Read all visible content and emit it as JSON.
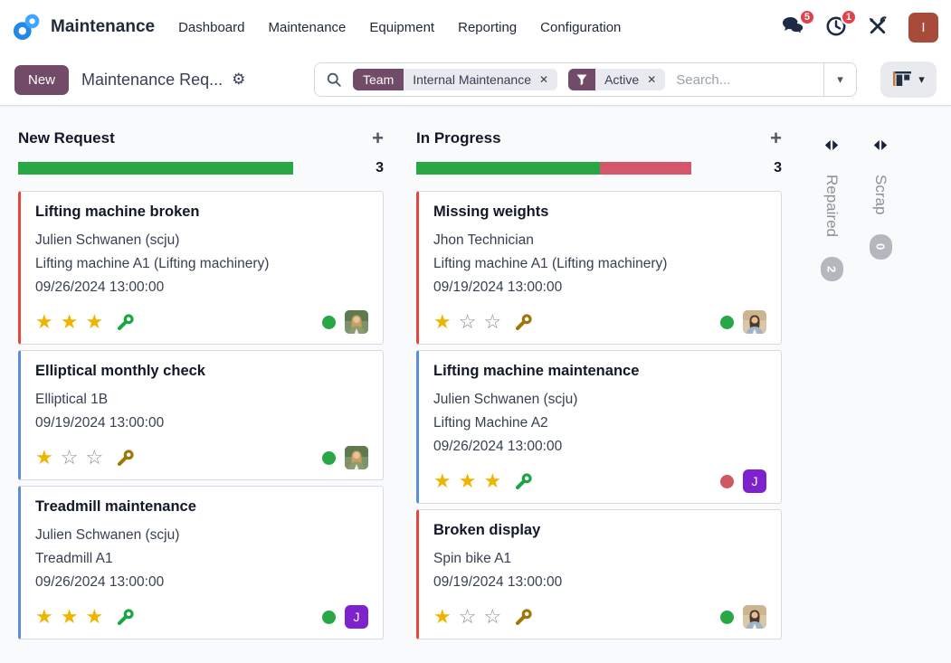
{
  "theme": {
    "purple": "#714B67",
    "page_bg": "#f9fafb",
    "green": "#28a745",
    "progress_red": "#d5566a",
    "accent_red": "#e8453c",
    "accent_blue": "#598fd8",
    "gold": "#f0b400",
    "star_empty": "#8a9099",
    "wrench_green": "#18a742",
    "wrench_olive": "#a07608",
    "dot_green": "#28a745",
    "dot_red": "#d05862",
    "badge_red": "#e0414d",
    "avatar_user_bg": "#a84b3b",
    "avatar_initial_bg": "#7e22ce",
    "folded_badge_bg": "#b4b7bd"
  },
  "icons": {
    "star_filled": "★",
    "star_empty": "☆",
    "plus": "+",
    "gear": "⚙",
    "caret_down": "▾",
    "remove": "✕"
  },
  "navbar": {
    "app_name": "Maintenance",
    "menu": [
      {
        "label": "Dashboard"
      },
      {
        "label": "Maintenance"
      },
      {
        "label": "Equipment"
      },
      {
        "label": "Reporting"
      },
      {
        "label": "Configuration"
      }
    ],
    "messages_badge": "5",
    "activities_badge": "1",
    "user_initial": "I"
  },
  "control_panel": {
    "new_button_label": "New",
    "breadcrumb_title": "Maintenance Req...",
    "search": {
      "placeholder": "Search...",
      "facets": [
        {
          "kind": "field",
          "label": "Team",
          "value": "Internal Maintenance",
          "remove_icon": "✕"
        },
        {
          "kind": "filter",
          "value": "Active",
          "remove_icon": "✕"
        }
      ]
    }
  },
  "board": {
    "columns": [
      {
        "title": "New Request",
        "count": "3",
        "progress": [
          {
            "label": "success",
            "color": "#28a745",
            "pct": 100
          }
        ],
        "cards": [
          {
            "accent": "red",
            "title": "Lifting machine broken",
            "lines": [
              "Julien Schwanen (scju)",
              "Lifting machine A1 (Lifting machinery)",
              "09/26/2024 13:00:00"
            ],
            "stars_filled": 3,
            "stars_total": 3,
            "wrench": "green",
            "dot": "green",
            "avatar": {
              "kind": "photo",
              "variant": "a"
            }
          },
          {
            "accent": "blue",
            "title": "Elliptical monthly check",
            "lines": [
              "Elliptical 1B",
              "09/19/2024 13:00:00"
            ],
            "stars_filled": 1,
            "stars_total": 3,
            "wrench": "olive",
            "dot": "green",
            "avatar": {
              "kind": "photo",
              "variant": "a"
            }
          },
          {
            "accent": "blue",
            "title": "Treadmill maintenance",
            "lines": [
              "Julien Schwanen (scju)",
              "Treadmill A1",
              "09/26/2024 13:00:00"
            ],
            "stars_filled": 3,
            "stars_total": 3,
            "wrench": "green",
            "dot": "green",
            "avatar": {
              "kind": "initial",
              "text": "J"
            }
          }
        ]
      },
      {
        "title": "In Progress",
        "count": "3",
        "progress": [
          {
            "label": "success",
            "color": "#28a745",
            "pct": 66.7
          },
          {
            "label": "danger",
            "color": "#d5566a",
            "pct": 33.3
          }
        ],
        "cards": [
          {
            "accent": "red",
            "title": "Missing weights",
            "lines": [
              "Jhon Technician",
              "Lifting machine A1 (Lifting machinery)",
              "09/19/2024 13:00:00"
            ],
            "stars_filled": 1,
            "stars_total": 3,
            "wrench": "olive",
            "dot": "green",
            "avatar": {
              "kind": "photo",
              "variant": "b"
            }
          },
          {
            "accent": "blue",
            "title": "Lifting machine maintenance",
            "lines": [
              "Julien Schwanen (scju)",
              "Lifting Machine A2",
              "09/26/2024 13:00:00"
            ],
            "stars_filled": 3,
            "stars_total": 3,
            "wrench": "green",
            "dot": "red",
            "avatar": {
              "kind": "initial",
              "text": "J"
            }
          },
          {
            "accent": "red",
            "title": "Broken display",
            "lines": [
              "Spin bike A1",
              "09/19/2024 13:00:00"
            ],
            "stars_filled": 1,
            "stars_total": 3,
            "wrench": "olive",
            "dot": "green",
            "avatar": {
              "kind": "photo",
              "variant": "b"
            }
          }
        ]
      }
    ],
    "folded_columns": [
      {
        "title": "Repaired",
        "count": "2"
      },
      {
        "title": "Scrap",
        "count": "0"
      }
    ]
  }
}
